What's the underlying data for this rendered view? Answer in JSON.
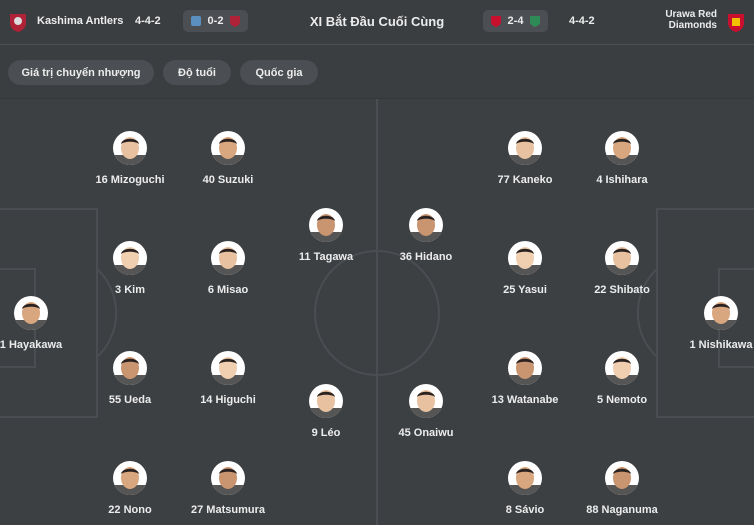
{
  "header": {
    "home": {
      "name": "Kashima Antlers",
      "formation": "4-4-2",
      "last_score": "0-2"
    },
    "title": "XI Bắt Đầu Cuối Cùng",
    "away": {
      "name": "Urawa Red Diamonds",
      "formation": "4-4-2",
      "last_score": "2-4"
    }
  },
  "tabs": [
    "Giá trị chuyển nhượng",
    "Độ tuổi",
    "Quốc gia"
  ],
  "home_players": [
    "16 Mizoguchi",
    "40 Suzuki",
    "11 Tagawa",
    "3 Kim",
    "6 Misao",
    "1 Hayakawa",
    "55 Ueda",
    "14 Higuchi",
    "9 Léo",
    "22 Nono",
    "27 Matsumura"
  ],
  "away_players": [
    "77 Kaneko",
    "4 Ishihara",
    "36 Hidano",
    "25 Yasui",
    "22 Shibato",
    "1 Nishikawa",
    "13 Watanabe",
    "5 Nemoto",
    "45 Onaiwu",
    "8 Sávio",
    "88 Naganuma"
  ]
}
